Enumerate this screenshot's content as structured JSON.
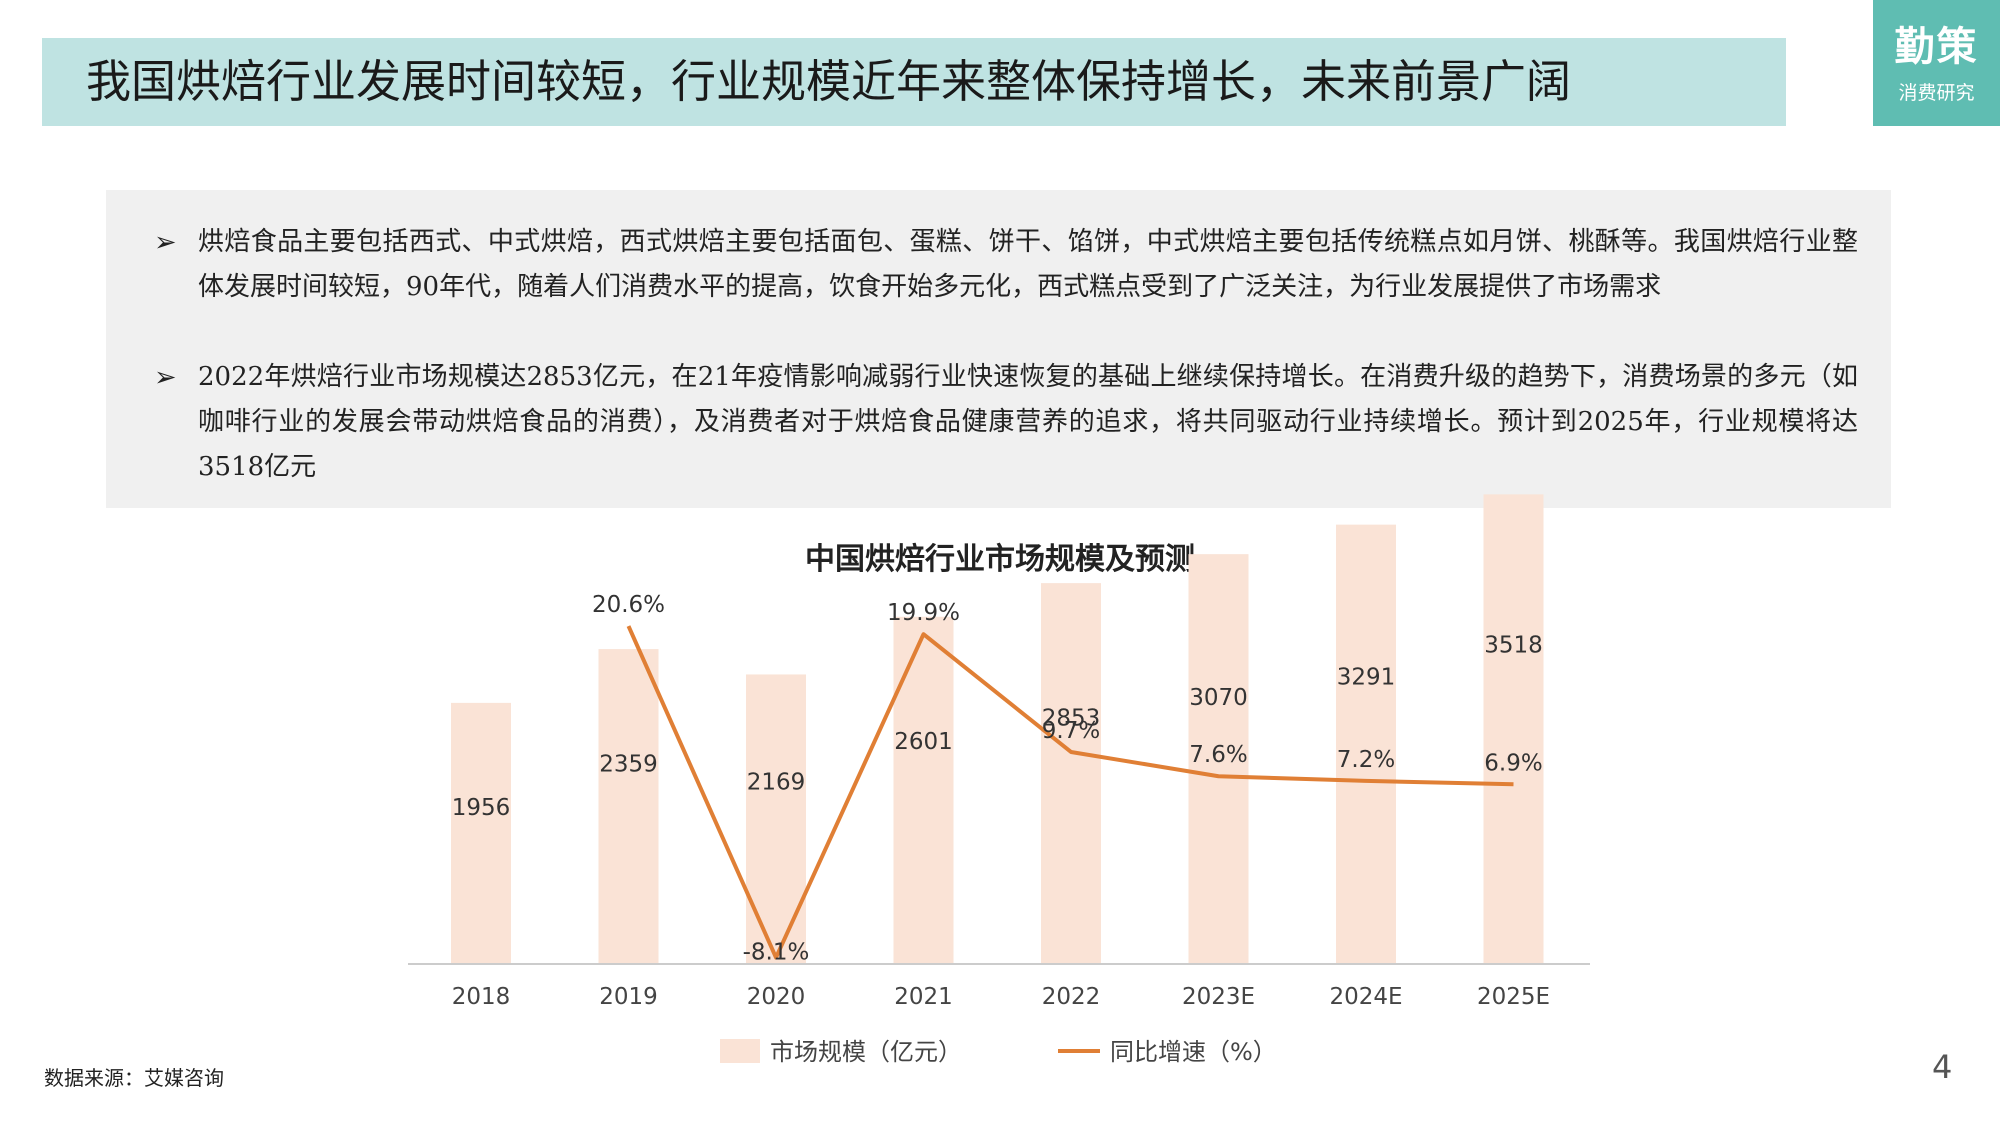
{
  "header": {
    "title": "我国烘焙行业发展时间较短，行业规模近年来整体保持增长，未来前景广阔"
  },
  "logo": {
    "main": "勤策",
    "sub": "消费研究"
  },
  "bullets": [
    {
      "marker": "➢",
      "text": "烘焙食品主要包括西式、中式烘焙，西式烘焙主要包括面包、蛋糕、饼干、馅饼，中式烘焙主要包括传统糕点如月饼、桃酥等。我国烘焙行业整体发展时间较短，90年代，随着人们消费水平的提高，饮食开始多元化，西式糕点受到了广泛关注，为行业发展提供了市场需求"
    },
    {
      "marker": "➢",
      "text": "2022年烘焙行业市场规模达2853亿元，在21年疫情影响减弱行业快速恢复的基础上继续保持增长。在消费升级的趋势下，消费场景的多元（如咖啡行业的发展会带动烘焙食品的消费），及消费者对于烘焙食品健康营养的追求，将共同驱动行业持续增长。预计到2025年，行业规模将达3518亿元"
    }
  ],
  "chart_data": {
    "type": "bar",
    "title": "中国烘焙行业市场规模及预测",
    "categories": [
      "2018",
      "2019",
      "2020",
      "2021",
      "2022",
      "2023E",
      "2024E",
      "2025E"
    ],
    "series": [
      {
        "name": "市场规模（亿元）",
        "type": "bar",
        "values": [
          1956,
          2359,
          2169,
          2601,
          2853,
          3070,
          3291,
          3518
        ],
        "labels": [
          "1956",
          "2359",
          "2169",
          "2601",
          "2853",
          "3070",
          "3291",
          "3518"
        ],
        "color": "#fae3d6"
      },
      {
        "name": "同比增速（%）",
        "type": "line",
        "values": [
          null,
          20.6,
          -8.1,
          19.9,
          9.7,
          7.6,
          7.2,
          6.9
        ],
        "labels": [
          "",
          "20.6%",
          "-8.1%",
          "19.9%",
          "9.7%",
          "7.6%",
          "7.2%",
          "6.9%"
        ],
        "color": "#e07f35"
      }
    ],
    "bar_ylim": [
      0,
      4000
    ],
    "line_ylim": [
      -10,
      24
    ],
    "legend_position": "bottom",
    "grid": false
  },
  "footer": {
    "source": "数据来源：艾媒咨询",
    "page_number": "4"
  }
}
